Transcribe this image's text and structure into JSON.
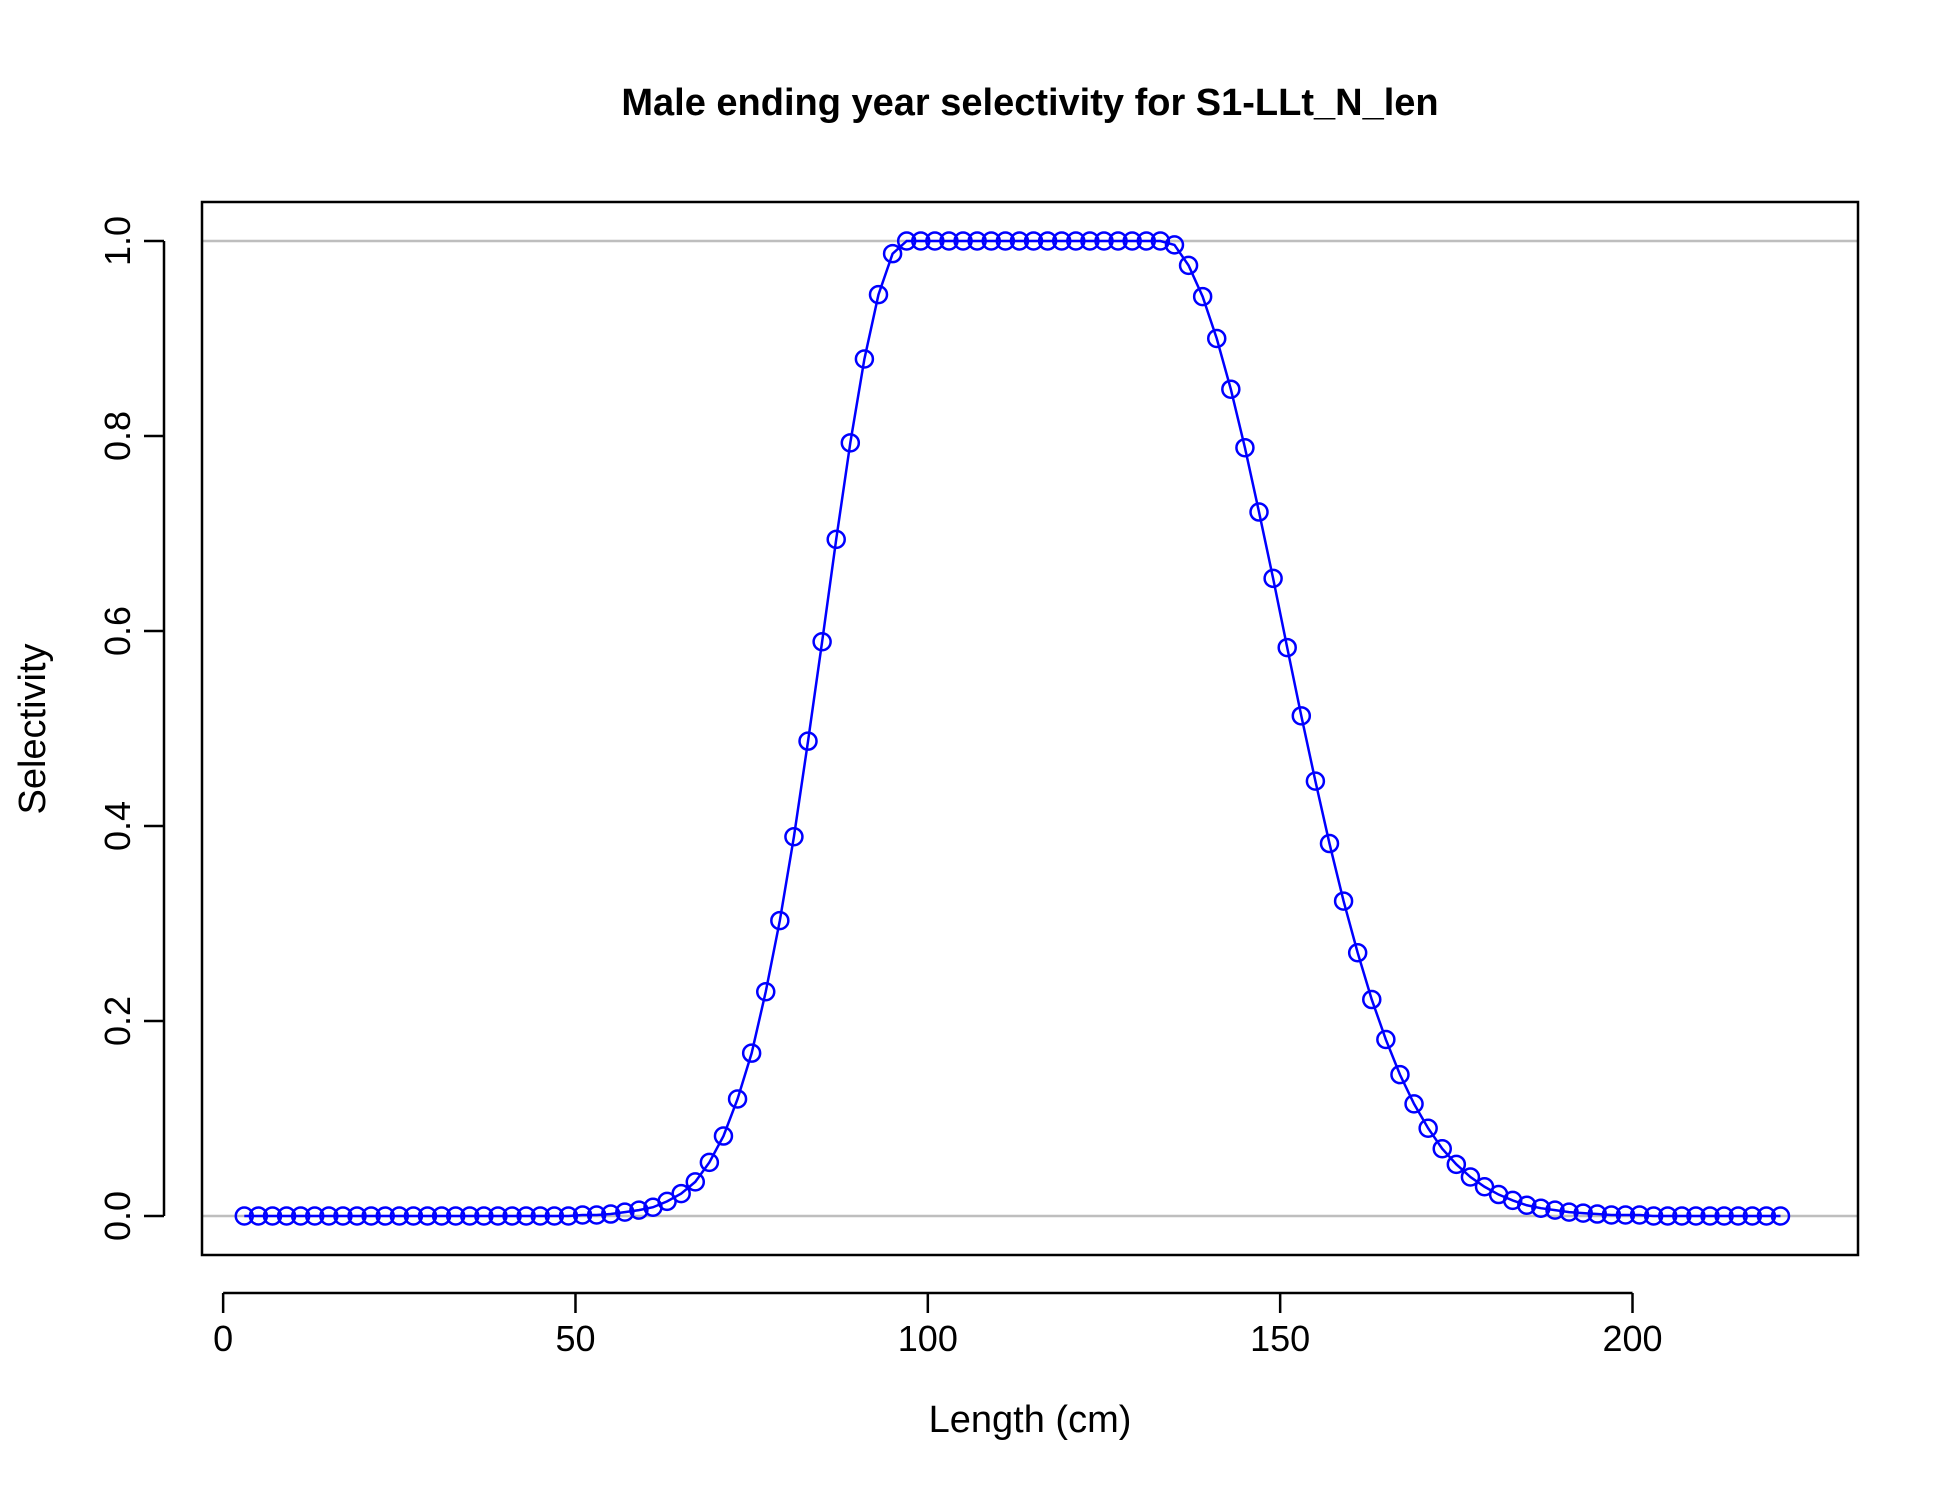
{
  "chart_data": {
    "type": "line",
    "title": "Male ending year selectivity for S1-LLt_N_len",
    "xlabel": "Length (cm)",
    "ylabel": "Selectivity",
    "xlim": [
      -3,
      232
    ],
    "ylim": [
      -0.04,
      1.04
    ],
    "x_ticks": [
      0,
      50,
      100,
      150,
      200
    ],
    "x_tick_labels": [
      "0",
      "50",
      "100",
      "150",
      "200"
    ],
    "y_ticks": [
      0.0,
      0.2,
      0.4,
      0.6,
      0.8,
      1.0
    ],
    "y_tick_labels": [
      "0.0",
      "0.2",
      "0.4",
      "0.6",
      "0.8",
      "1.0"
    ],
    "reference_lines": [
      0,
      1
    ],
    "reference_line_color": "#bebebe",
    "series_color": "#0000ff",
    "marker": "open-circle",
    "series": [
      {
        "x": [
          3,
          5,
          7,
          9,
          11,
          13,
          15,
          17,
          19,
          21,
          23,
          25,
          27,
          29,
          31,
          33,
          35,
          37,
          39,
          41,
          43,
          45,
          47,
          49,
          51,
          53,
          55,
          57,
          59,
          61,
          63,
          65,
          67,
          69,
          71,
          73,
          75,
          77,
          79,
          81,
          83,
          85,
          87,
          89,
          91,
          93,
          95,
          97,
          99,
          101,
          103,
          105,
          107,
          109,
          111,
          113,
          115,
          117,
          119,
          121,
          123,
          125,
          127,
          129,
          131,
          133,
          135,
          137,
          139,
          141,
          143,
          145,
          147,
          149,
          151,
          153,
          155,
          157,
          159,
          161,
          163,
          165,
          167,
          169,
          171,
          173,
          175,
          177,
          179,
          181,
          183,
          185,
          187,
          189,
          191,
          193,
          195,
          197,
          199,
          201,
          203,
          205,
          207,
          209,
          211,
          213,
          215,
          217,
          219,
          221
        ],
        "values": [
          0,
          0,
          0,
          0,
          0,
          0,
          0,
          0,
          0,
          0,
          0,
          0,
          0,
          0,
          0,
          0,
          0,
          0,
          0,
          0,
          0,
          0,
          0,
          0,
          0.001,
          0.001,
          0.002,
          0.004,
          0.006,
          0.009,
          0.015,
          0.023,
          0.035,
          0.055,
          0.082,
          0.12,
          0.167,
          0.23,
          0.303,
          0.389,
          0.487,
          0.589,
          0.694,
          0.793,
          0.879,
          0.945,
          0.987,
          1,
          1,
          1,
          1,
          1,
          1,
          1,
          1,
          1,
          1,
          1,
          1,
          1,
          1,
          1,
          1,
          1,
          1,
          1,
          0.996,
          0.975,
          0.943,
          0.9,
          0.848,
          0.788,
          0.722,
          0.654,
          0.583,
          0.513,
          0.446,
          0.382,
          0.323,
          0.27,
          0.222,
          0.181,
          0.145,
          0.115,
          0.09,
          0.069,
          0.053,
          0.04,
          0.03,
          0.022,
          0.016,
          0.011,
          0.008,
          0.006,
          0.004,
          0.003,
          0.002,
          0.001,
          0.001,
          0.001,
          0,
          0,
          0,
          0,
          0,
          0,
          0,
          0,
          0,
          0
        ]
      }
    ]
  }
}
